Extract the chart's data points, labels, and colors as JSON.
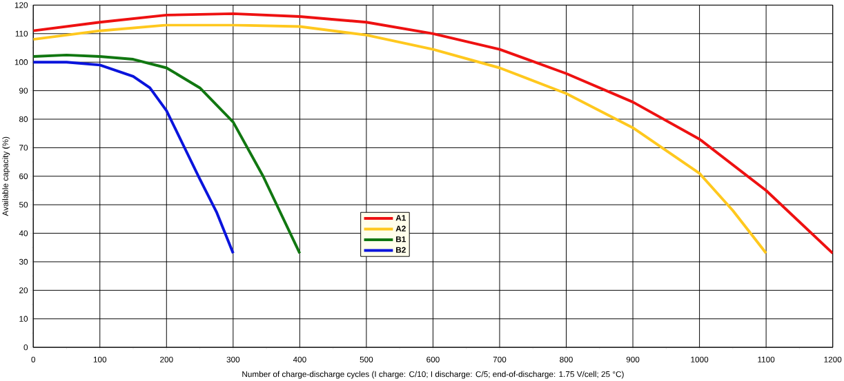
{
  "chart_data": {
    "type": "line",
    "xlabel": "Number of charge-discharge cycles (I charge: C/10; I discharge: C/5; end-of-discharge: 1.75 V/cell; 25 °C)",
    "ylabel": "Available capacity (%)",
    "xlim": [
      0,
      1200
    ],
    "xticks": [
      0,
      100,
      200,
      300,
      400,
      500,
      600,
      700,
      800,
      900,
      1000,
      1100,
      1200
    ],
    "ylim": [
      0,
      120
    ],
    "yticks": [
      0,
      10,
      20,
      30,
      40,
      50,
      60,
      70,
      80,
      90,
      100,
      110,
      120
    ],
    "grid": true,
    "legend": "center",
    "line_style": "solid",
    "series": [
      {
        "name": "A1",
        "color": "#ee1111",
        "x": [
          0,
          100,
          200,
          300,
          400,
          500,
          600,
          700,
          800,
          900,
          1000,
          1100,
          1200
        ],
        "values": [
          111,
          114,
          116.5,
          117,
          116,
          114,
          110,
          104.5,
          96,
          86,
          73,
          55,
          33
        ]
      },
      {
        "name": "A2",
        "color": "#ffc81e",
        "x": [
          0,
          100,
          200,
          300,
          400,
          500,
          600,
          700,
          800,
          900,
          1000,
          1050,
          1100
        ],
        "values": [
          108,
          111,
          113,
          113,
          112.5,
          109.5,
          104.5,
          98,
          89,
          77,
          61,
          48,
          33
        ]
      },
      {
        "name": "B1",
        "color": "#117711",
        "x": [
          0,
          50,
          100,
          150,
          200,
          250,
          300,
          345,
          400
        ],
        "values": [
          102,
          102.5,
          102,
          101,
          98,
          91,
          79,
          60,
          33
        ]
      },
      {
        "name": "B2",
        "color": "#0a14dc",
        "x": [
          0,
          50,
          100,
          150,
          175,
          200,
          225,
          250,
          275,
          300
        ],
        "values": [
          100,
          100,
          99,
          95,
          91,
          83,
          71,
          59,
          47.5,
          33
        ]
      }
    ]
  }
}
